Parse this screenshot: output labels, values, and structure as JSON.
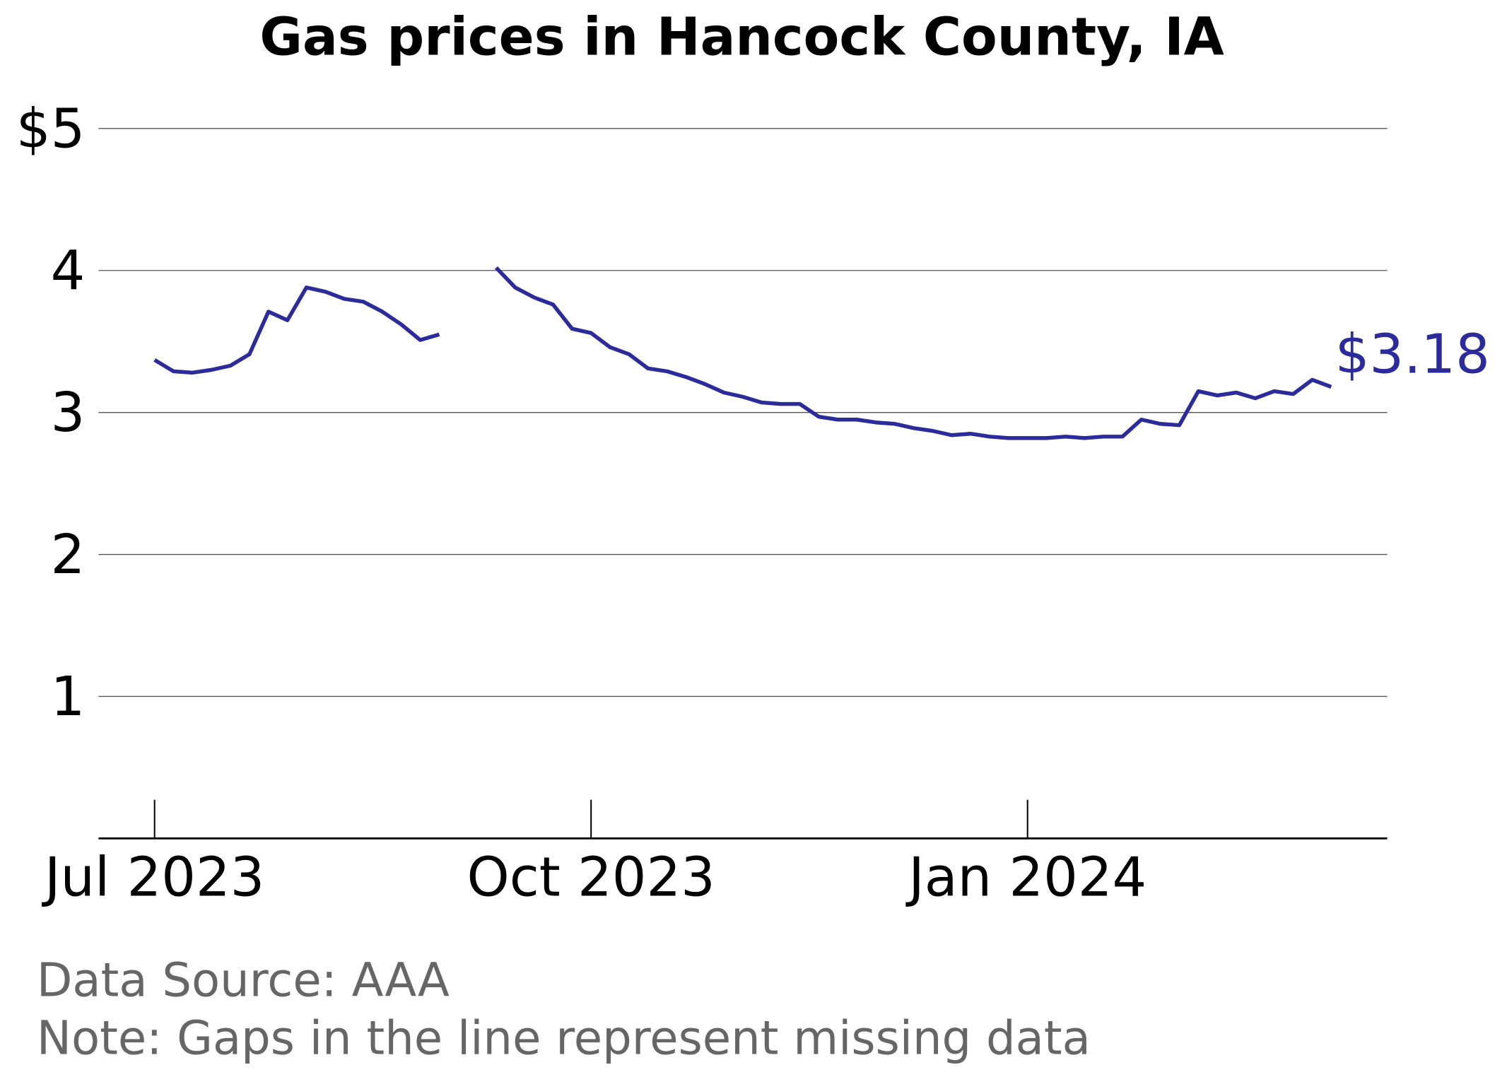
{
  "chart_data": {
    "type": "line",
    "title": "Gas prices in Hancock County, IA",
    "categories": [
      "Jul 2023",
      null,
      null,
      null,
      null,
      null,
      null,
      null,
      null,
      null,
      null,
      null,
      null,
      null,
      null,
      null,
      null,
      null,
      null,
      null,
      null,
      null,
      null,
      "Oct 2023",
      null,
      null,
      null,
      null,
      null,
      null,
      null,
      null,
      null,
      null,
      null,
      null,
      null,
      null,
      null,
      null,
      null,
      null,
      null,
      null,
      null,
      null,
      "Jan 2024",
      null,
      null,
      null,
      null,
      null,
      null,
      null,
      null,
      null,
      null,
      null,
      null,
      null,
      null,
      null,
      null
    ],
    "series": [
      {
        "name": "Gas price",
        "color": "#2b2b9b",
        "values": [
          3.37,
          3.29,
          3.28,
          3.3,
          3.33,
          3.41,
          3.71,
          3.65,
          3.88,
          3.85,
          3.8,
          3.78,
          3.71,
          3.62,
          3.51,
          3.55,
          null,
          null,
          4.02,
          3.88,
          3.81,
          3.76,
          3.59,
          3.56,
          3.46,
          3.41,
          3.31,
          3.29,
          3.25,
          3.2,
          3.14,
          3.11,
          3.07,
          3.06,
          3.06,
          2.97,
          2.95,
          2.95,
          2.93,
          2.92,
          2.89,
          2.87,
          2.84,
          2.85,
          2.83,
          2.82,
          2.82,
          2.82,
          2.83,
          2.82,
          2.83,
          2.83,
          2.95,
          2.92,
          2.91,
          3.15,
          3.12,
          3.14,
          3.1,
          3.15,
          3.13,
          3.23,
          3.18
        ],
        "value_labels": [
          null,
          null,
          null,
          null,
          null,
          null,
          null,
          null,
          null,
          null,
          null,
          null,
          null,
          null,
          null,
          null,
          null,
          null,
          null,
          null,
          null,
          null,
          null,
          null,
          null,
          null,
          null,
          null,
          null,
          null,
          null,
          null,
          null,
          null,
          null,
          null,
          null,
          null,
          null,
          null,
          null,
          null,
          null,
          null,
          null,
          null,
          null,
          null,
          null,
          null,
          null,
          null,
          null,
          null,
          null,
          null,
          null,
          null,
          null,
          null,
          null,
          null,
          "$3.18"
        ]
      }
    ],
    "ylim": [
      0,
      5.25
    ],
    "yticks": [
      1,
      2,
      3,
      4,
      {
        "value": 5,
        "label": "$5"
      }
    ],
    "grid": true,
    "source": "Data Source: AAA",
    "note": "Note: Gaps in the line represent missing data"
  }
}
